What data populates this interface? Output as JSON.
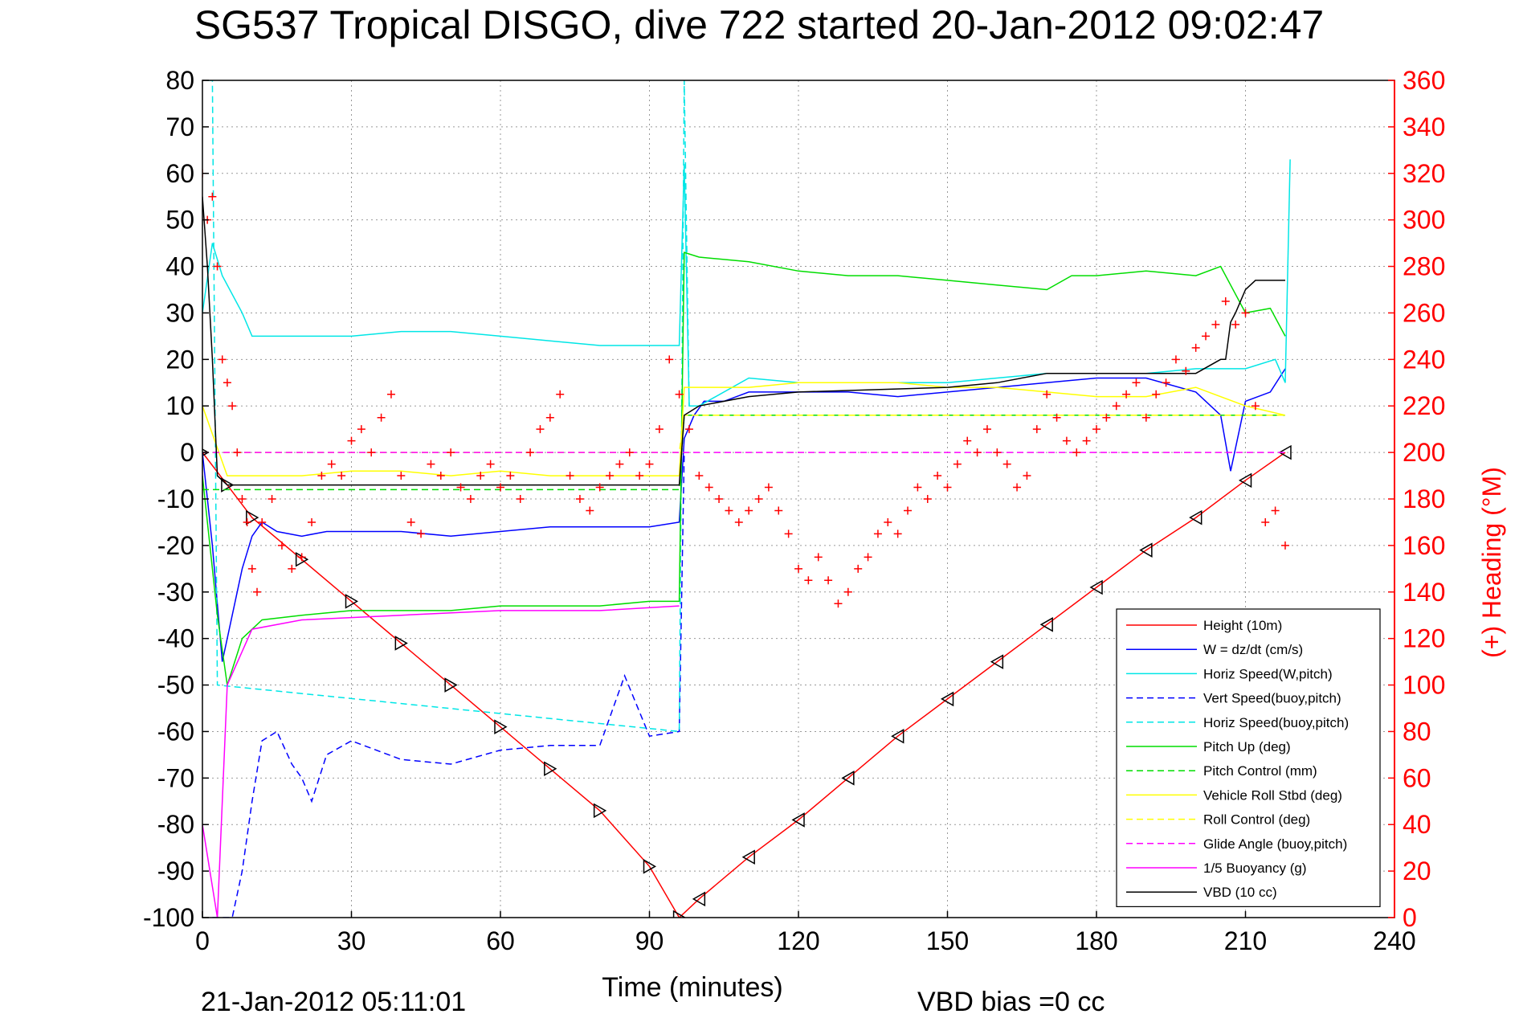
{
  "chart_data": {
    "type": "line",
    "title": "SG537 Tropical DISGO, dive 722 started 20-Jan-2012 09:02:47",
    "xlabel": "Time (minutes)",
    "ylabel": "",
    "ylabel_right": "(+) Heading (°M)",
    "xlim": [
      0,
      240
    ],
    "ylim": [
      -100,
      80
    ],
    "ylim_right": [
      0,
      360
    ],
    "xticks": [
      "0",
      "30",
      "60",
      "90",
      "120",
      "150",
      "180",
      "210",
      "240"
    ],
    "yticks": [
      "80",
      "70",
      "60",
      "50",
      "40",
      "30",
      "20",
      "10",
      "0",
      "-10",
      "-20",
      "-30",
      "-40",
      "-50",
      "-60",
      "-70",
      "-80",
      "-90",
      "-100"
    ],
    "yticks_right": [
      "360",
      "340",
      "320",
      "300",
      "280",
      "260",
      "240",
      "220",
      "200",
      "180",
      "160",
      "140",
      "120",
      "100",
      "80",
      "60",
      "40",
      "20",
      "0"
    ],
    "grid": true,
    "legend_position": "bottom-right",
    "footer_left": "21-Jan-2012 05:11:01",
    "footer_right": "VBD bias =0 cc",
    "colors": {
      "red": "#ff0000",
      "blue": "#0000ff",
      "cyan": "#00e6e6",
      "green": "#00dd00",
      "yellow": "#ffff00",
      "magenta": "#ff00ff",
      "black": "#000000"
    },
    "series": [
      {
        "name": "Height (10m)",
        "color": "#ff0000",
        "style": "solid",
        "x": [
          0,
          5,
          10,
          20,
          30,
          40,
          50,
          60,
          70,
          80,
          90,
          96,
          100,
          110,
          120,
          130,
          140,
          150,
          160,
          170,
          180,
          190,
          200,
          210,
          218
        ],
        "y": [
          0,
          -7,
          -14,
          -23,
          -32,
          -41,
          -50,
          -59,
          -68,
          -77,
          -89,
          -100,
          -96,
          -87,
          -79,
          -70,
          -61,
          -53,
          -45,
          -37,
          -29,
          -21,
          -14,
          -6,
          0
        ]
      },
      {
        "name": "W = dz/dt (cm/s)",
        "color": "#0000ff",
        "style": "solid",
        "x": [
          0,
          2,
          4,
          6,
          8,
          10,
          12,
          15,
          20,
          25,
          30,
          40,
          50,
          60,
          70,
          80,
          90,
          96,
          97,
          99,
          101,
          105,
          110,
          120,
          130,
          140,
          150,
          160,
          170,
          180,
          190,
          200,
          205,
          207,
          210,
          215,
          218
        ],
        "y": [
          0,
          -20,
          -45,
          -35,
          -25,
          -18,
          -15,
          -17,
          -18,
          -17,
          -17,
          -17,
          -18,
          -17,
          -16,
          -16,
          -16,
          -15,
          3,
          8,
          11,
          11,
          13,
          13,
          13,
          12,
          13,
          14,
          15,
          16,
          16,
          13,
          8,
          -4,
          11,
          13,
          18
        ]
      },
      {
        "name": "Horiz Speed(W,pitch)",
        "color": "#00e6e6",
        "style": "solid",
        "x": [
          0,
          2,
          4,
          8,
          10,
          20,
          30,
          40,
          50,
          60,
          70,
          80,
          90,
          96,
          97,
          98,
          100,
          110,
          120,
          130,
          140,
          150,
          160,
          170,
          180,
          190,
          200,
          210,
          216,
          218,
          219
        ],
        "y": [
          30,
          45,
          38,
          30,
          25,
          25,
          25,
          26,
          26,
          25,
          24,
          23,
          23,
          23,
          62,
          10,
          10,
          16,
          15,
          15,
          15,
          15,
          16,
          17,
          17,
          17,
          18,
          18,
          20,
          15,
          63
        ]
      },
      {
        "name": "Vert Speed(buoy,pitch)",
        "color": "#0000ff",
        "style": "dashed",
        "x": [
          2,
          3,
          4,
          5,
          6,
          8,
          10,
          12,
          15,
          18,
          20,
          22,
          25,
          30,
          40,
          50,
          60,
          70,
          80,
          85,
          90,
          96,
          97
        ],
        "y": [
          -100,
          -100,
          -100,
          -100,
          -100,
          -90,
          -75,
          -62,
          -60,
          -67,
          -70,
          -75,
          -65,
          -62,
          -66,
          -67,
          -64,
          -63,
          -63,
          -48,
          -61,
          -60,
          0
        ]
      },
      {
        "name": "Horiz Speed(buoy,pitch)",
        "color": "#00e6e6",
        "style": "dashed",
        "x": [
          1,
          2,
          3,
          96,
          97,
          98
        ],
        "y": [
          80,
          80,
          -50,
          -60,
          80,
          10
        ]
      },
      {
        "name": "Pitch Up (deg)",
        "color": "#00dd00",
        "style": "solid",
        "x": [
          0,
          3,
          5,
          8,
          12,
          20,
          30,
          40,
          50,
          60,
          70,
          80,
          90,
          96,
          97,
          100,
          110,
          120,
          130,
          140,
          150,
          160,
          170,
          175,
          180,
          190,
          200,
          205,
          210,
          215,
          218
        ],
        "y": [
          -5,
          -35,
          -50,
          -40,
          -36,
          -35,
          -34,
          -34,
          -34,
          -33,
          -33,
          -33,
          -32,
          -32,
          43,
          42,
          41,
          39,
          38,
          38,
          37,
          36,
          35,
          38,
          38,
          39,
          38,
          40,
          30,
          31,
          25
        ]
      },
      {
        "name": "Pitch Control (mm)",
        "color": "#00dd00",
        "style": "dashed",
        "x": [
          0,
          96,
          97,
          218
        ],
        "y": [
          -8,
          -8,
          8,
          8
        ]
      },
      {
        "name": "Vehicle Roll Stbd (deg)",
        "color": "#ffff00",
        "style": "solid",
        "x": [
          0,
          5,
          10,
          20,
          30,
          40,
          50,
          60,
          70,
          80,
          90,
          96,
          97,
          100,
          110,
          120,
          130,
          140,
          150,
          160,
          170,
          180,
          190,
          200,
          210,
          218
        ],
        "y": [
          10,
          -5,
          -5,
          -5,
          -4,
          -4,
          -5,
          -4,
          -5,
          -5,
          -5,
          -5,
          14,
          14,
          14,
          15,
          15,
          15,
          14,
          14,
          13,
          12,
          12,
          14,
          10,
          8
        ]
      },
      {
        "name": "Roll Control (deg)",
        "color": "#ffff00",
        "style": "dashed",
        "x": [
          0,
          96,
          97,
          218
        ],
        "y": [
          0,
          0,
          8,
          8
        ]
      },
      {
        "name": "Glide Angle (buoy,pitch)",
        "color": "#ff00ff",
        "style": "dashed",
        "x": [
          0,
          96,
          97,
          218
        ],
        "y": [
          0,
          0,
          0,
          0
        ]
      },
      {
        "name": "1/5 Buoyancy (g)",
        "color": "#ff00ff",
        "style": "solid",
        "x": [
          0,
          3,
          5,
          10,
          20,
          40,
          60,
          80,
          96
        ],
        "y": [
          -80,
          -100,
          -50,
          -38,
          -36,
          -35,
          -34,
          -34,
          -33
        ]
      },
      {
        "name": "VBD (10 cc)",
        "color": "#000000",
        "style": "solid",
        "x": [
          0,
          1,
          2,
          3,
          5,
          96,
          97,
          100,
          110,
          120,
          150,
          160,
          170,
          190,
          200,
          205,
          206,
          207,
          208,
          210,
          212,
          218
        ],
        "y": [
          55,
          40,
          20,
          -5,
          -7,
          -7,
          8,
          10,
          12,
          13,
          14,
          15,
          17,
          17,
          17,
          20,
          20,
          28,
          30,
          35,
          37,
          37
        ]
      },
      {
        "name": "Heading",
        "color": "#ff0000",
        "style": "markers",
        "x": [
          0,
          1,
          2,
          3,
          4,
          5,
          6,
          7,
          8,
          9,
          10,
          11,
          12,
          14,
          16,
          18,
          20,
          22,
          24,
          26,
          28,
          30,
          32,
          34,
          36,
          38,
          40,
          42,
          44,
          46,
          48,
          50,
          52,
          54,
          56,
          58,
          60,
          62,
          64,
          66,
          68,
          70,
          72,
          74,
          76,
          78,
          80,
          82,
          84,
          86,
          88,
          90,
          92,
          94,
          96,
          98,
          100,
          102,
          104,
          106,
          108,
          110,
          112,
          114,
          116,
          118,
          120,
          122,
          124,
          126,
          128,
          130,
          132,
          134,
          136,
          138,
          140,
          142,
          144,
          146,
          148,
          150,
          152,
          154,
          156,
          158,
          160,
          162,
          164,
          166,
          168,
          170,
          172,
          174,
          176,
          178,
          180,
          182,
          184,
          186,
          188,
          190,
          192,
          194,
          196,
          198,
          200,
          202,
          204,
          206,
          208,
          210,
          212,
          214,
          216,
          218
        ],
        "y": [
          320,
          300,
          310,
          280,
          240,
          230,
          220,
          200,
          180,
          170,
          150,
          140,
          170,
          180,
          160,
          150,
          155,
          170,
          190,
          195,
          190,
          205,
          210,
          200,
          215,
          225,
          190,
          170,
          165,
          195,
          190,
          200,
          185,
          180,
          190,
          195,
          185,
          190,
          180,
          200,
          210,
          215,
          225,
          190,
          180,
          175,
          185,
          190,
          195,
          200,
          190,
          195,
          210,
          240,
          225,
          210,
          190,
          185,
          180,
          175,
          170,
          175,
          180,
          185,
          175,
          165,
          150,
          145,
          155,
          145,
          135,
          140,
          150,
          155,
          165,
          170,
          165,
          175,
          185,
          180,
          190,
          185,
          195,
          205,
          200,
          210,
          200,
          195,
          185,
          190,
          210,
          225,
          215,
          205,
          200,
          205,
          210,
          215,
          220,
          225,
          230,
          215,
          225,
          230,
          240,
          235,
          245,
          250,
          255,
          265,
          255,
          260,
          220,
          170,
          175,
          160
        ]
      }
    ]
  }
}
